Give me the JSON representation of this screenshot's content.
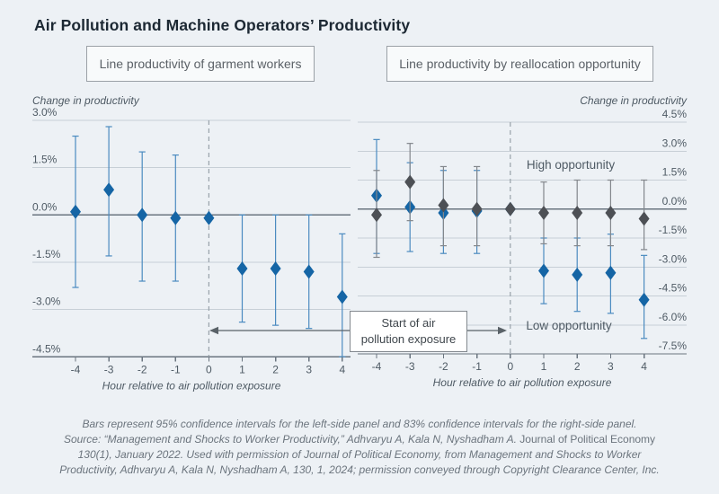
{
  "title": "Air Pollution and Machine Operators’ Productivity",
  "panels": {
    "left": {
      "header": "Line productivity of garment workers",
      "y_axis_label": "Change in productivity",
      "x_axis_label": "Hour relative to air pollution exposure"
    },
    "right": {
      "header": "Line productivity by reallocation opportunity",
      "y_axis_label": "Change in productivity",
      "x_axis_label": "Hour relative to air pollution exposure",
      "series_labels": {
        "high": "High opportunity",
        "low": "Low opportunity"
      }
    }
  },
  "annotation": {
    "line1": "Start of air",
    "line2": "pollution exposure"
  },
  "caption": {
    "line1": "Bars represent 95% confidence intervals for the left-side panel and 83% confidence intervals for the right-side panel.",
    "line2_italic": "Source: “Management and Shocks to Worker Productivity,” Adhvaryu A, Kala N, Nyshadham A.",
    "line2_roman": "Journal of Political Economy",
    "line3": "130(1), January 2022. Used with permission of Journal of Political Economy, from Management and Shocks to Worker",
    "line4": "Productivity, Adhvaryu A, Kala N, Nyshadham A, 130, 1, 2024; permission conveyed through Copyright Clearance Center, Inc."
  },
  "colors": {
    "background": "#edf1f5",
    "blue": "#1565a5",
    "blue_whisker": "#4b8bc0",
    "gray": "#4d5055",
    "gray_whisker": "#83878c",
    "gridline": "#c7cfd6",
    "axis": "#6a7580",
    "dashed_line": "#98a2aa",
    "high_label": "#40464c",
    "low_label": "#1565a5"
  },
  "chart_data": [
    {
      "type": "scatter",
      "title": "Line productivity of garment workers",
      "xlabel": "Hour relative to air pollution exposure",
      "ylabel": "Change in productivity",
      "ci_level": "95%",
      "grid": true,
      "x": [
        -4,
        -3,
        -2,
        -1,
        0,
        1,
        2,
        3,
        4
      ],
      "ylim": [
        -4.5,
        3.0
      ],
      "ytick_step": 1.5,
      "series": [
        {
          "name": "Garment workers",
          "color": "#1565a5",
          "whisker": "#4b8bc0",
          "values": [
            0.1,
            0.8,
            0.0,
            -0.1,
            -0.1,
            -1.7,
            -1.7,
            -1.8,
            -2.6
          ],
          "ci_low": [
            -2.3,
            -1.3,
            -2.1,
            -2.1,
            null,
            -3.4,
            -3.5,
            -3.6,
            -4.5
          ],
          "ci_high": [
            2.5,
            2.8,
            2.0,
            1.9,
            null,
            0.0,
            0.0,
            0.0,
            -0.6
          ]
        }
      ]
    },
    {
      "type": "scatter",
      "title": "Line productivity by reallocation opportunity",
      "xlabel": "Hour relative to air pollution exposure",
      "ylabel": "Change in productivity",
      "ci_level": "83%",
      "grid": true,
      "x": [
        -4,
        -3,
        -2,
        -1,
        0,
        1,
        2,
        3,
        4
      ],
      "ylim": [
        -7.5,
        4.5
      ],
      "ytick_step": 1.5,
      "series": [
        {
          "name": "Low opportunity",
          "color": "#1565a5",
          "whisker": "#4b8bc0",
          "values": [
            0.7,
            0.1,
            -0.2,
            -0.1,
            0.0,
            -3.2,
            -3.4,
            -3.3,
            -4.7
          ],
          "ci_low": [
            -2.3,
            -2.2,
            -2.3,
            -2.3,
            null,
            -4.9,
            -5.3,
            -5.4,
            -6.7
          ],
          "ci_high": [
            3.6,
            2.4,
            2.0,
            2.0,
            null,
            -1.5,
            -1.5,
            -1.3,
            -2.4
          ]
        },
        {
          "name": "High opportunity",
          "color": "#4d5055",
          "whisker": "#83878c",
          "values": [
            -0.3,
            1.4,
            0.2,
            0.0,
            0.0,
            -0.2,
            -0.2,
            -0.2,
            -0.5
          ],
          "ci_low": [
            -2.5,
            -0.6,
            -1.9,
            -1.9,
            null,
            -1.8,
            -1.9,
            -1.9,
            -2.1
          ],
          "ci_high": [
            2.0,
            3.4,
            2.2,
            2.2,
            null,
            1.4,
            1.5,
            1.5,
            1.5
          ]
        }
      ]
    }
  ]
}
